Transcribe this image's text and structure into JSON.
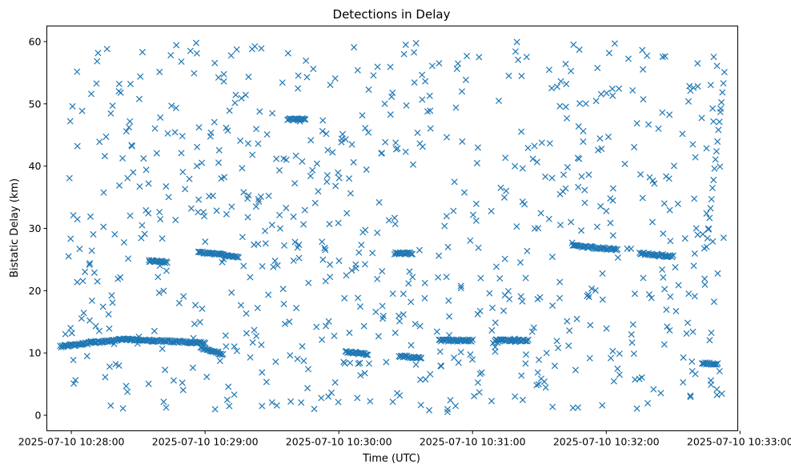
{
  "chart_data": {
    "type": "scatter",
    "title": "Detections in Delay",
    "xlabel": "Time (UTC)",
    "ylabel": "Bistatic Delay (km)",
    "xlim": [
      "2025-07-10 10:27:49",
      "2025-07-10 10:32:59"
    ],
    "ylim": [
      -2.5,
      62.5
    ],
    "x_ticks": [
      "2025-07-10 10:28:00",
      "2025-07-10 10:29:00",
      "2025-07-10 10:30:00",
      "2025-07-10 10:31:00",
      "2025-07-10 10:32:00",
      "2025-07-10 10:33:00"
    ],
    "y_ticks": [
      0,
      10,
      20,
      30,
      40,
      50,
      60
    ],
    "marker": "x",
    "color": "#1f77b4",
    "grid": false,
    "legend": "none",
    "x_range": [
      "2025-07-10 10:27:55",
      "2025-07-10 10:32:53"
    ],
    "y_range": [
      0.5,
      60
    ],
    "tracks": [
      {
        "t_start": "2025-07-10 10:27:55",
        "t_end": "2025-07-10 10:28:05",
        "delay_start": 11.0,
        "delay_end": 11.5
      },
      {
        "t_start": "2025-07-10 10:28:05",
        "t_end": "2025-07-10 10:28:25",
        "delay_start": 11.5,
        "delay_end": 12.2
      },
      {
        "t_start": "2025-07-10 10:28:25",
        "t_end": "2025-07-10 10:29:00",
        "delay_start": 12.2,
        "delay_end": 11.6
      },
      {
        "t_start": "2025-07-10 10:28:58",
        "t_end": "2025-07-10 10:29:08",
        "delay_start": 10.8,
        "delay_end": 9.8
      },
      {
        "t_start": "2025-07-10 10:30:03",
        "t_end": "2025-07-10 10:30:13",
        "delay_start": 10.2,
        "delay_end": 9.8
      },
      {
        "t_start": "2025-07-10 10:30:27",
        "t_end": "2025-07-10 10:30:37",
        "delay_start": 9.5,
        "delay_end": 9.2
      },
      {
        "t_start": "2025-07-10 10:30:45",
        "t_end": "2025-07-10 10:31:00",
        "delay_start": 12.0,
        "delay_end": 12.0
      },
      {
        "t_start": "2025-07-10 10:31:10",
        "t_end": "2025-07-10 10:31:25",
        "delay_start": 12.0,
        "delay_end": 12.0
      },
      {
        "t_start": "2025-07-10 10:32:43",
        "t_end": "2025-07-10 10:32:50",
        "delay_start": 8.3,
        "delay_end": 8.3
      },
      {
        "t_start": "2025-07-10 10:28:35",
        "t_end": "2025-07-10 10:28:43",
        "delay_start": 24.8,
        "delay_end": 24.6
      },
      {
        "t_start": "2025-07-10 10:28:57",
        "t_end": "2025-07-10 10:29:15",
        "delay_start": 26.2,
        "delay_end": 25.5
      },
      {
        "t_start": "2025-07-10 10:30:25",
        "t_end": "2025-07-10 10:30:33",
        "delay_start": 26.0,
        "delay_end": 26.0
      },
      {
        "t_start": "2025-07-10 10:31:45",
        "t_end": "2025-07-10 10:32:05",
        "delay_start": 27.2,
        "delay_end": 26.6
      },
      {
        "t_start": "2025-07-10 10:32:15",
        "t_end": "2025-07-10 10:32:30",
        "delay_start": 26.0,
        "delay_end": 25.5
      },
      {
        "t_start": "2025-07-10 10:32:45",
        "t_end": "2025-07-10 10:32:53",
        "delay_start": 27.0,
        "delay_end": 55.0
      },
      {
        "t_start": "2025-07-10 10:29:37",
        "t_end": "2025-07-10 10:29:45",
        "delay_start": 47.5,
        "delay_end": 47.5
      }
    ]
  }
}
